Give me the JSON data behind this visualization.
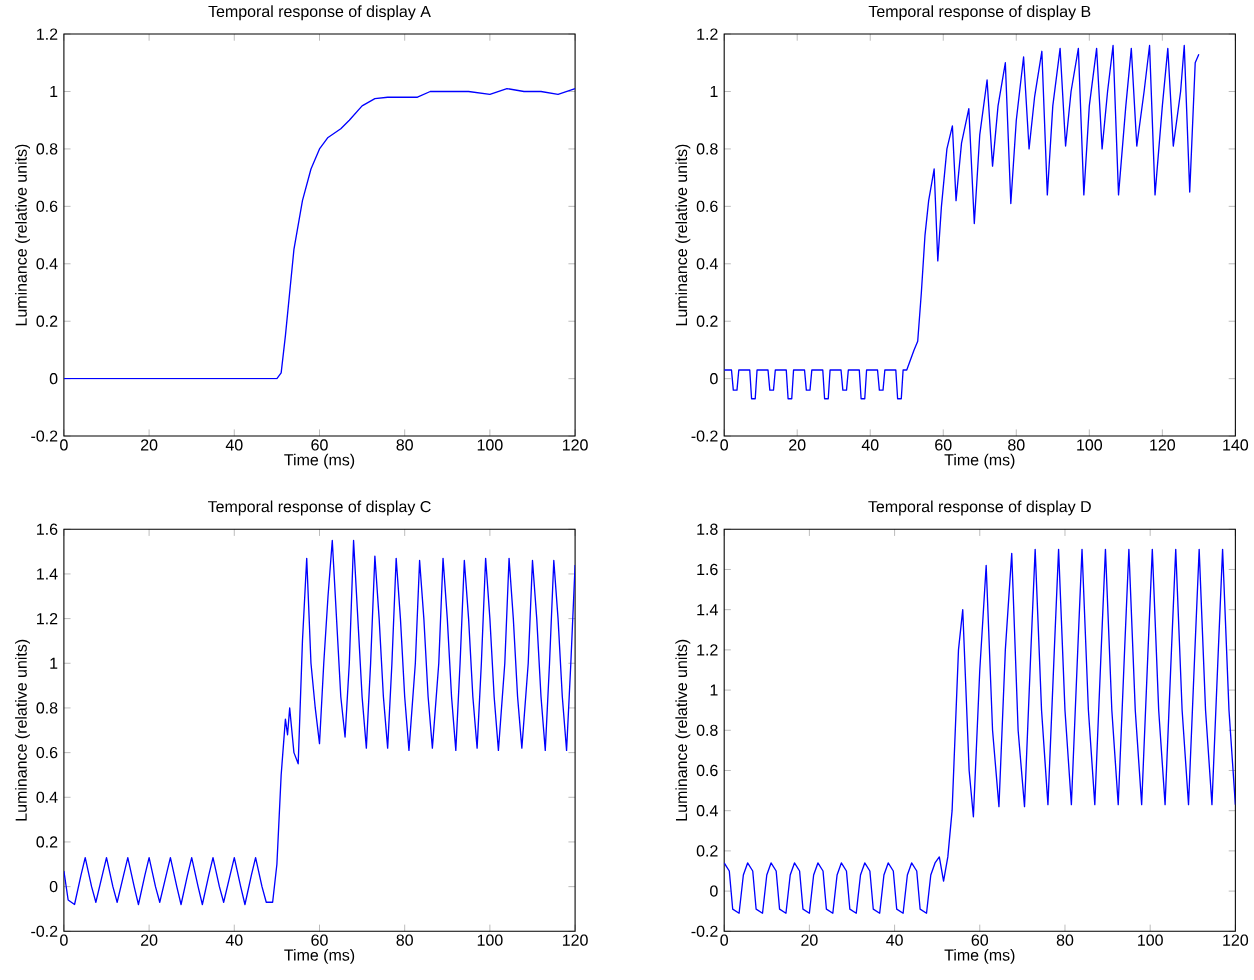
{
  "chart_data": [
    {
      "type": "line",
      "title": "Temporal response of display A",
      "xlabel": "Time (ms)",
      "ylabel": "Luminance (relative units)",
      "color": "#0000ff",
      "xlim": [
        0,
        120
      ],
      "ylim": [
        -0.2,
        1.2
      ],
      "xticks": [
        0,
        20,
        40,
        60,
        80,
        100,
        120
      ],
      "yticks": [
        -0.2,
        0,
        0.2,
        0.4,
        0.6,
        0.8,
        1,
        1.2
      ],
      "x": [
        0,
        10,
        20,
        30,
        40,
        50,
        51,
        52,
        54,
        56,
        58,
        60,
        62,
        65,
        67,
        70,
        73,
        76,
        80,
        83,
        86,
        90,
        95,
        100,
        104,
        108,
        112,
        116,
        120
      ],
      "values": [
        0,
        0,
        0,
        0,
        0,
        0,
        0.02,
        0.15,
        0.45,
        0.62,
        0.73,
        0.8,
        0.84,
        0.87,
        0.9,
        0.95,
        0.975,
        0.98,
        0.98,
        0.98,
        1.0,
        1.0,
        1.0,
        0.99,
        1.01,
        1.0,
        1.0,
        0.99,
        1.01
      ]
    },
    {
      "type": "line",
      "title": "Temporal response of display B",
      "xlabel": "Time (ms)",
      "ylabel": "Luminance (relative units)",
      "color": "#0000ff",
      "xlim": [
        0,
        140
      ],
      "ylim": [
        -0.2,
        1.2
      ],
      "xticks": [
        0,
        20,
        40,
        60,
        80,
        100,
        120,
        140
      ],
      "yticks": [
        -0.2,
        0,
        0.2,
        0.4,
        0.6,
        0.8,
        1,
        1.2
      ],
      "x": [
        0,
        2,
        2.5,
        3.5,
        4,
        7,
        7.5,
        8.5,
        9,
        12,
        12.5,
        13.5,
        14,
        17,
        17.5,
        18.5,
        19,
        22,
        22.5,
        23.5,
        24,
        27,
        27.5,
        28.5,
        29,
        32,
        32.5,
        33.5,
        34,
        37,
        37.5,
        38.5,
        39,
        42,
        42.5,
        43.5,
        44,
        47,
        47.5,
        48.5,
        49,
        50,
        52,
        53,
        54,
        55,
        56,
        57.5,
        58.5,
        59.5,
        61,
        62.5,
        63.5,
        65,
        67,
        68.5,
        70,
        72,
        73.5,
        75,
        77,
        78.5,
        80,
        82,
        83.5,
        85,
        87,
        88.5,
        90,
        92,
        93.5,
        95,
        97,
        98.5,
        100,
        102,
        103.5,
        105,
        106.5,
        108,
        110,
        111.5,
        113,
        115,
        116.5,
        118,
        120,
        121.5,
        123,
        125,
        126,
        127.5,
        129,
        130
      ],
      "values": [
        0.03,
        0.03,
        -0.04,
        -0.04,
        0.03,
        0.03,
        -0.07,
        -0.07,
        0.03,
        0.03,
        -0.04,
        -0.04,
        0.03,
        0.03,
        -0.07,
        -0.07,
        0.03,
        0.03,
        -0.04,
        -0.04,
        0.03,
        0.03,
        -0.07,
        -0.07,
        0.03,
        0.03,
        -0.04,
        -0.04,
        0.03,
        0.03,
        -0.07,
        -0.07,
        0.03,
        0.03,
        -0.04,
        -0.04,
        0.03,
        0.03,
        -0.07,
        -0.07,
        0.03,
        0.03,
        0.1,
        0.13,
        0.3,
        0.5,
        0.62,
        0.73,
        0.41,
        0.6,
        0.8,
        0.88,
        0.62,
        0.82,
        0.94,
        0.54,
        0.85,
        1.04,
        0.74,
        0.95,
        1.1,
        0.61,
        0.9,
        1.12,
        0.8,
        0.98,
        1.14,
        0.64,
        0.95,
        1.15,
        0.81,
        1.0,
        1.15,
        0.64,
        0.95,
        1.15,
        0.8,
        1.0,
        1.16,
        0.64,
        0.95,
        1.15,
        0.81,
        1.0,
        1.16,
        0.64,
        0.95,
        1.15,
        0.81,
        1.0,
        1.16,
        0.65,
        1.1,
        1.13
      ]
    },
    {
      "type": "line",
      "title": "Temporal response of display C",
      "xlabel": "Time (ms)",
      "ylabel": "Luminance (relative units)",
      "color": "#0000ff",
      "xlim": [
        0,
        120
      ],
      "ylim": [
        -0.2,
        1.6
      ],
      "xticks": [
        0,
        20,
        40,
        60,
        80,
        100,
        120
      ],
      "yticks": [
        -0.2,
        0,
        0.2,
        0.4,
        0.6,
        0.8,
        1,
        1.2,
        1.4,
        1.6
      ],
      "x": [
        0,
        1,
        2.5,
        4,
        5,
        6.5,
        7.5,
        9,
        10,
        11.5,
        12.5,
        14,
        15,
        16.5,
        17.5,
        19,
        20,
        21.5,
        22.5,
        24,
        25,
        26.5,
        27.5,
        29,
        30,
        31.5,
        32.5,
        34,
        35,
        36.5,
        37.5,
        39,
        40,
        41.5,
        42.5,
        44,
        45,
        46.5,
        47.5,
        49,
        50,
        51,
        52,
        52.5,
        53,
        54,
        55,
        56,
        57,
        58,
        59,
        60,
        61,
        62,
        63,
        64,
        65,
        66,
        67,
        68,
        69,
        70,
        71,
        72,
        73,
        74,
        75,
        76,
        77,
        78,
        79,
        80,
        81,
        82.5,
        83.5,
        84.5,
        85.5,
        86.5,
        88,
        89,
        90,
        91,
        92,
        93,
        94,
        95,
        96,
        97,
        98,
        99,
        100,
        101,
        102,
        103.5,
        104.5,
        105.5,
        106.5,
        107.5,
        109,
        110,
        111,
        112,
        113,
        114,
        115,
        116,
        117,
        118,
        119,
        120
      ],
      "values": [
        0.07,
        -0.06,
        -0.08,
        0.05,
        0.13,
        0.0,
        -0.07,
        0.05,
        0.13,
        0.0,
        -0.07,
        0.05,
        0.13,
        0.0,
        -0.08,
        0.05,
        0.13,
        0.0,
        -0.07,
        0.05,
        0.13,
        0.0,
        -0.08,
        0.05,
        0.13,
        0.0,
        -0.08,
        0.05,
        0.13,
        0.0,
        -0.07,
        0.05,
        0.13,
        0.0,
        -0.08,
        0.05,
        0.13,
        0.0,
        -0.07,
        -0.07,
        0.1,
        0.5,
        0.75,
        0.68,
        0.8,
        0.6,
        0.55,
        1.1,
        1.47,
        1.0,
        0.8,
        0.64,
        1.0,
        1.3,
        1.55,
        1.2,
        0.85,
        0.67,
        1.0,
        1.55,
        1.2,
        0.85,
        0.62,
        1.0,
        1.48,
        1.2,
        0.85,
        0.62,
        1.0,
        1.47,
        1.2,
        0.85,
        0.61,
        1.0,
        1.46,
        1.2,
        0.85,
        0.62,
        1.0,
        1.47,
        1.2,
        0.85,
        0.61,
        1.0,
        1.46,
        1.2,
        0.85,
        0.62,
        1.0,
        1.47,
        1.2,
        0.85,
        0.61,
        1.0,
        1.47,
        1.2,
        0.85,
        0.62,
        1.0,
        1.46,
        1.2,
        0.85,
        0.61,
        1.0,
        1.46,
        1.2,
        0.85,
        0.61,
        1.0,
        1.44
      ]
    },
    {
      "type": "line",
      "title": "Temporal response of display D",
      "xlabel": "Time (ms)",
      "ylabel": "Luminance (relative units)",
      "color": "#0000ff",
      "xlim": [
        0,
        120
      ],
      "ylim": [
        -0.2,
        1.8
      ],
      "xticks": [
        0,
        20,
        40,
        60,
        80,
        100,
        120
      ],
      "yticks": [
        -0.2,
        0,
        0.2,
        0.4,
        0.6,
        0.8,
        1,
        1.2,
        1.4,
        1.6,
        1.8
      ],
      "x": [
        0,
        1.2,
        2,
        3.5,
        4.5,
        5.5,
        6.7,
        7.5,
        9,
        10,
        11,
        12.2,
        13,
        14.5,
        15.5,
        16.5,
        17.7,
        18.5,
        20,
        21,
        22,
        23.2,
        24,
        25.5,
        26.5,
        27.5,
        28.7,
        29.5,
        31,
        32,
        33,
        34.2,
        35,
        36.5,
        37.5,
        38.5,
        39.7,
        40.5,
        42,
        43,
        44,
        45.2,
        46,
        47.5,
        48.5,
        49.5,
        50.5,
        51.5,
        52.5,
        53.5,
        55,
        56,
        57.5,
        58.5,
        60,
        61.5,
        63,
        64.5,
        66,
        67.5,
        69,
        70.5,
        72,
        73,
        74.5,
        76,
        77.5,
        78.5,
        80,
        81.5,
        83,
        84,
        85.5,
        87,
        88.5,
        89.5,
        91,
        92.5,
        94,
        95,
        96.5,
        98,
        99.5,
        100.5,
        102,
        103.5,
        105,
        106,
        107.5,
        109,
        110.5,
        111.5,
        113,
        114.5,
        116,
        117,
        118.5,
        120
      ],
      "values": [
        0.14,
        0.1,
        -0.09,
        -0.11,
        0.08,
        0.14,
        0.1,
        -0.09,
        -0.11,
        0.08,
        0.14,
        0.1,
        -0.09,
        -0.11,
        0.08,
        0.14,
        0.1,
        -0.09,
        -0.11,
        0.08,
        0.14,
        0.1,
        -0.09,
        -0.11,
        0.08,
        0.14,
        0.1,
        -0.09,
        -0.11,
        0.08,
        0.14,
        0.1,
        -0.09,
        -0.11,
        0.08,
        0.14,
        0.1,
        -0.09,
        -0.11,
        0.08,
        0.14,
        0.1,
        -0.09,
        -0.11,
        0.08,
        0.14,
        0.17,
        0.05,
        0.17,
        0.4,
        1.2,
        1.4,
        0.6,
        0.37,
        1.1,
        1.62,
        0.8,
        0.42,
        1.2,
        1.68,
        0.8,
        0.42,
        1.2,
        1.7,
        0.9,
        0.43,
        1.2,
        1.7,
        0.9,
        0.43,
        1.2,
        1.7,
        0.9,
        0.43,
        1.2,
        1.7,
        0.9,
        0.43,
        1.2,
        1.7,
        0.9,
        0.43,
        1.2,
        1.7,
        0.9,
        0.43,
        1.2,
        1.7,
        0.9,
        0.43,
        1.2,
        1.7,
        0.9,
        0.43,
        1.2,
        1.7,
        0.9,
        0.43
      ]
    }
  ]
}
